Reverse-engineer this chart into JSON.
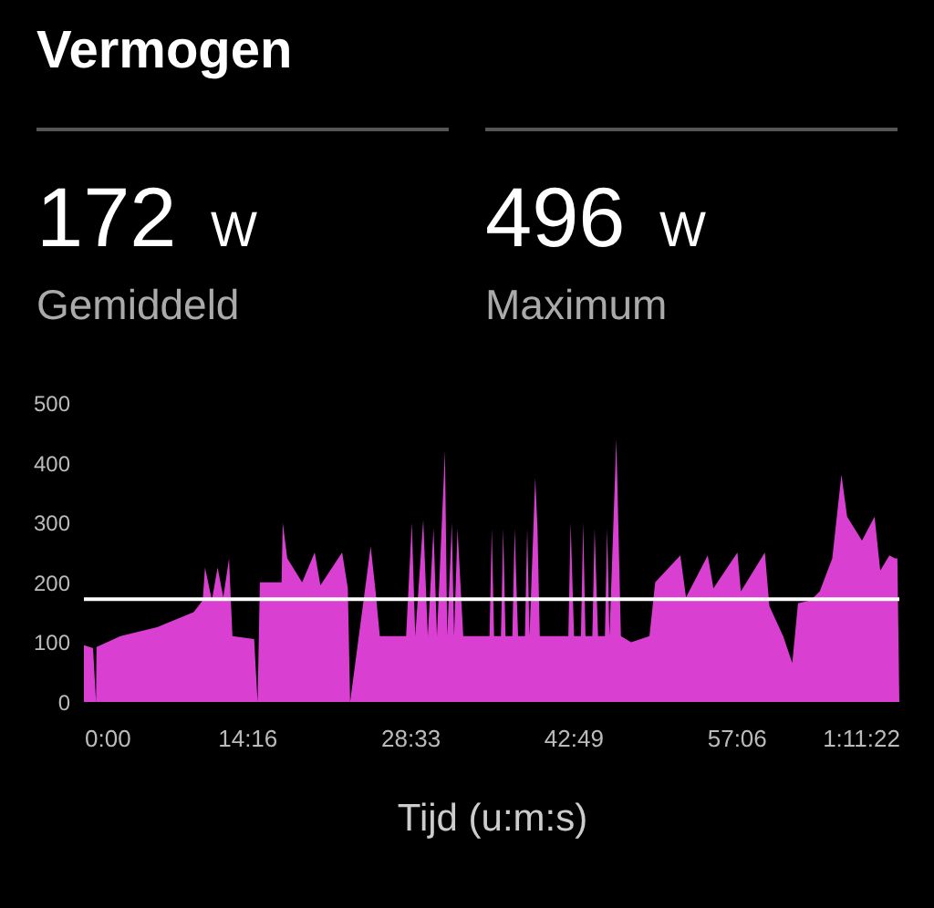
{
  "chart_data": {
    "type": "area",
    "title": "Vermogen",
    "xlabel": "Tijd (u:m:s)",
    "annotations": [
      "172 W",
      "Gemiddeld",
      "496 W",
      "Maximum"
    ],
    "x": [
      0,
      0.8,
      1.06,
      1.1,
      3.2,
      6.4,
      9.6,
      10.4,
      10.6,
      11.2,
      11.7,
      12.2,
      12.7,
      13.0,
      14.9,
      15.2,
      15.4,
      17.3,
      17.4,
      17.8,
      19.1,
      20.2,
      20.7,
      22.6,
      23.1,
      23.3,
      25.1,
      25.5,
      25.9,
      28.2,
      28.7,
      29.0,
      29.7,
      30.1,
      30.6,
      30.9,
      31.6,
      31.8,
      32.2,
      32.4,
      32.7,
      33.2,
      35.5,
      35.7,
      35.9,
      36.5,
      36.7,
      36.9,
      37.5,
      37.7,
      38.0,
      38.6,
      38.8,
      39.0,
      39.5,
      39.7,
      39.9,
      42.4,
      42.6,
      42.9,
      43.5,
      43.7,
      43.9,
      44.5,
      44.7,
      45.0,
      45.6,
      45.8,
      46.0,
      46.6,
      47.0,
      47.9,
      49.5,
      50.0,
      52.2,
      52.7,
      54.6,
      55.1,
      57.2,
      57.5,
      59.6,
      60.0,
      61.2,
      62.0,
      62.5,
      63.6,
      64.4,
      65.5,
      66.3,
      66.8,
      68.1,
      69.2,
      69.7,
      70.5,
      71.0,
      71.2,
      71.37
    ],
    "series": [
      {
        "color": "#d93fd0",
        "values": [
          95,
          90,
          0,
          92,
          110,
          125,
          150,
          170,
          225,
          170,
          225,
          175,
          240,
          110,
          105,
          0,
          200,
          200,
          300,
          240,
          200,
          250,
          195,
          250,
          190,
          0,
          260,
          190,
          110,
          110,
          300,
          110,
          305,
          110,
          290,
          110,
          420,
          110,
          300,
          110,
          290,
          110,
          110,
          290,
          110,
          110,
          290,
          110,
          110,
          290,
          110,
          110,
          290,
          110,
          375,
          290,
          110,
          110,
          300,
          110,
          110,
          300,
          110,
          110,
          290,
          110,
          110,
          290,
          110,
          440,
          110,
          100,
          110,
          200,
          245,
          175,
          245,
          190,
          250,
          185,
          250,
          160,
          110,
          65,
          165,
          170,
          185,
          240,
          380,
          310,
          270,
          310,
          220,
          245,
          240,
          240,
          0
        ]
      }
    ],
    "ylim": [
      0,
      500
    ],
    "yticks": [
      0,
      100,
      200,
      300,
      400,
      500
    ],
    "xlim": [
      0,
      71.37
    ],
    "xticks": [
      {
        "value": 0,
        "label": "0:00"
      },
      {
        "value": 14.27,
        "label": "14:16"
      },
      {
        "value": 28.55,
        "label": "28:33"
      },
      {
        "value": 42.82,
        "label": "42:49"
      },
      {
        "value": 57.1,
        "label": "57:06"
      },
      {
        "value": 71.37,
        "label": "1:11:22"
      }
    ],
    "ref_lines": [
      {
        "axis": "y",
        "value": 172,
        "color": "#ffffff"
      }
    ],
    "grid": false
  }
}
